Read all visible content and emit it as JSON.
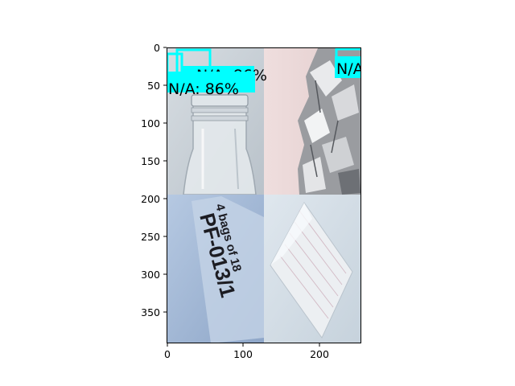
{
  "figure": {
    "x_ticks": [
      "0",
      "100",
      "200"
    ],
    "y_ticks": [
      "0",
      "50",
      "100",
      "150",
      "200",
      "250",
      "300",
      "350"
    ],
    "colors": {
      "detection_box": "#00ffff",
      "axes": "#000000",
      "background": "#ffffff"
    }
  },
  "mosaic": {
    "tiles": [
      {
        "subject": "glass-bottle-icon",
        "bg": "#c9d0d6"
      },
      {
        "subject": "aluminum-foil-icon",
        "bg": "#e8d2d2"
      },
      {
        "subject": "plastic-bag-label-icon",
        "bg": "#a9bfdc"
      },
      {
        "subject": "plastic-sheet-icon",
        "bg": "#d2dde6"
      }
    ],
    "label_text": {
      "line1": "4 bags of 18",
      "line2": "PF-013/1"
    }
  },
  "detections": [
    {
      "label": "N/A: 86%",
      "label_hidden": "N/A: 86%"
    },
    {
      "label": "N/A"
    }
  ]
}
